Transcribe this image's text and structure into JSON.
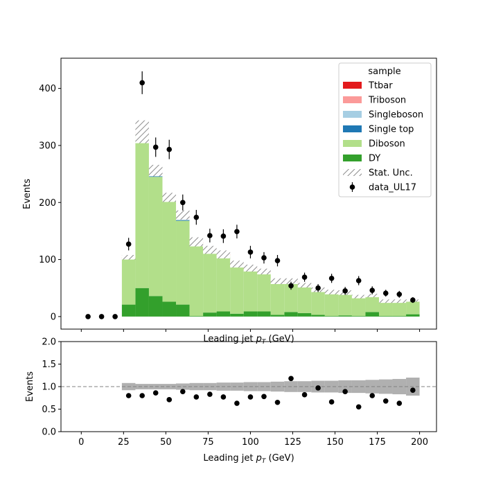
{
  "chart_data": [
    {
      "type": "stacked-histogram",
      "xlabel": "Leading jet  pT (GeV)",
      "ylabel": "Events",
      "xlim": [
        -12,
        210
      ],
      "ylim": [
        -22,
        453
      ],
      "yticks": [
        0,
        100,
        200,
        300,
        400
      ],
      "legend": {
        "title": "sample",
        "placement": "top-right",
        "entries": [
          "Ttbar",
          "Triboson",
          "Singleboson",
          "Single top",
          "Diboson",
          "DY",
          "Stat. Unc.",
          "data_UL17"
        ]
      },
      "bin_edges": [
        24,
        32,
        40,
        48,
        56,
        64,
        72,
        80,
        88,
        96,
        104,
        112,
        120,
        128,
        136,
        144,
        152,
        160,
        168,
        176,
        184,
        192,
        200
      ],
      "series": [
        {
          "name": "DY",
          "color": "#33a02c",
          "values": [
            21,
            50,
            36,
            26,
            21,
            1,
            7,
            9,
            5,
            9,
            9,
            3,
            8,
            6,
            3,
            1,
            2,
            1,
            8,
            1,
            1,
            4
          ]
        },
        {
          "name": "Diboson",
          "color": "#b2df8a",
          "values": [
            81,
            270,
            209,
            180,
            147,
            127,
            108,
            98,
            85,
            73,
            68,
            58,
            51,
            48,
            43,
            41,
            40,
            34,
            28,
            25,
            26,
            24
          ]
        },
        {
          "name": "Single top",
          "color": "#1f78b4",
          "values": [
            0,
            0,
            1,
            0,
            1,
            0,
            0,
            0,
            0,
            0,
            0,
            0,
            0,
            0,
            0,
            0,
            0,
            0,
            0,
            0,
            0,
            0
          ]
        },
        {
          "name": "Singleboson",
          "color": "#a6cee3",
          "values": [
            0,
            0,
            1,
            0,
            1,
            0,
            0,
            0,
            0,
            0,
            0,
            0,
            0,
            0,
            0,
            0,
            0,
            0,
            0,
            0,
            0,
            0
          ]
        },
        {
          "name": "Triboson",
          "color": "#fb9a99",
          "values": [
            1,
            3,
            3,
            1,
            2,
            1,
            1,
            1,
            1,
            1,
            1,
            0,
            1,
            0,
            0,
            0,
            0,
            0,
            0,
            0,
            0,
            0
          ]
        },
        {
          "name": "Ttbar",
          "color": "#e31a1c",
          "values": [
            1,
            1,
            6,
            2,
            6,
            2,
            1,
            1,
            1,
            2,
            1,
            1,
            2,
            1,
            1,
            1,
            0,
            0,
            1,
            1,
            0,
            0
          ]
        }
      ],
      "stat_unc": [
        4,
        20,
        10,
        8,
        8,
        8,
        7,
        7,
        6,
        6,
        5,
        5,
        5,
        4,
        4,
        4,
        4,
        3,
        3,
        3,
        3,
        2
      ],
      "data": {
        "name": "data_UL17",
        "x": [
          4,
          12,
          20,
          28,
          36,
          44,
          52,
          60,
          68,
          76,
          84,
          92,
          100,
          108,
          116,
          124,
          132,
          140,
          148,
          156,
          164,
          172,
          180,
          188,
          196
        ],
        "y": [
          0,
          0,
          0,
          127,
          410,
          297,
          293,
          200,
          174,
          142,
          141,
          149,
          113,
          103,
          98,
          54,
          69,
          50,
          67,
          45,
          63,
          46,
          41,
          39,
          29
        ],
        "yerr": [
          0,
          0,
          0,
          11,
          20,
          17,
          17,
          14,
          13,
          12,
          12,
          12,
          11,
          10,
          10,
          7,
          8,
          7,
          8,
          7,
          8,
          7,
          6,
          6,
          5
        ]
      }
    },
    {
      "type": "ratio",
      "xlabel": "Leading jet  pT (GeV)",
      "ylabel": "Events",
      "xlim": [
        -12,
        210
      ],
      "ylim": [
        0.0,
        2.0
      ],
      "xticks": [
        0,
        25,
        50,
        75,
        100,
        125,
        150,
        175,
        200
      ],
      "ytick_labels": [
        "0.0",
        "0.5",
        "1.0",
        "1.5",
        "2.0"
      ],
      "reference_line": 1.0,
      "unc_band": [
        0.08,
        0.06,
        0.06,
        0.06,
        0.07,
        0.08,
        0.08,
        0.09,
        0.09,
        0.1,
        0.1,
        0.11,
        0.12,
        0.12,
        0.13,
        0.13,
        0.14,
        0.14,
        0.15,
        0.16,
        0.17,
        0.2
      ],
      "x": [
        28,
        36,
        44,
        52,
        60,
        68,
        76,
        84,
        92,
        100,
        108,
        116,
        124,
        132,
        140,
        148,
        156,
        164,
        172,
        180,
        188,
        196
      ],
      "y": [
        0.8,
        0.8,
        0.86,
        0.71,
        0.89,
        0.77,
        0.83,
        0.77,
        0.63,
        0.77,
        0.78,
        0.65,
        1.18,
        0.82,
        0.97,
        0.66,
        0.89,
        0.55,
        0.8,
        0.68,
        0.63,
        0.92
      ]
    }
  ]
}
